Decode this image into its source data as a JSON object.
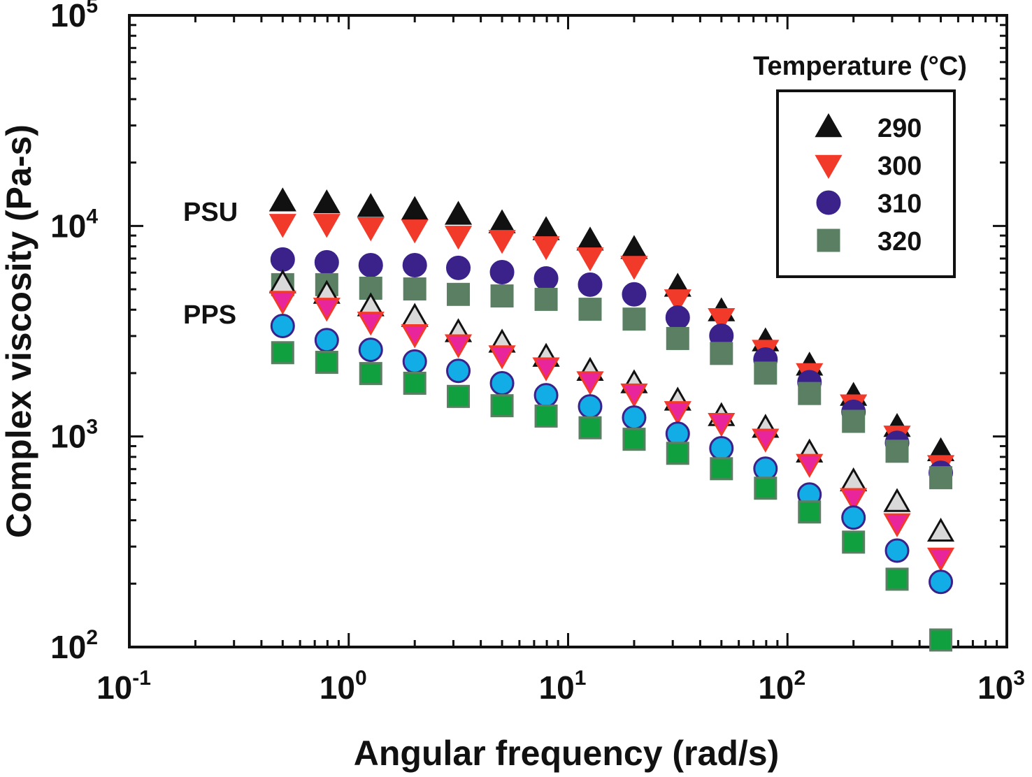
{
  "chart_data": {
    "type": "scatter",
    "xlabel": "Angular frequency (rad/s)",
    "ylabel": "Complex viscosity (Pa-s)",
    "xscale": "log",
    "yscale": "log",
    "xlim": [
      0.1,
      1000
    ],
    "ylim": [
      100,
      100000
    ],
    "x_ticks": [
      {
        "base": "10",
        "exp": "-1",
        "v": 0.1
      },
      {
        "base": "10",
        "exp": "0",
        "v": 1
      },
      {
        "base": "10",
        "exp": "1",
        "v": 10
      },
      {
        "base": "10",
        "exp": "2",
        "v": 100
      },
      {
        "base": "10",
        "exp": "3",
        "v": 1000
      }
    ],
    "y_ticks": [
      {
        "base": "10",
        "exp": "2",
        "v": 100
      },
      {
        "base": "10",
        "exp": "3",
        "v": 1000
      },
      {
        "base": "10",
        "exp": "4",
        "v": 10000
      },
      {
        "base": "10",
        "exp": "5",
        "v": 100000
      }
    ],
    "grid": false,
    "legend": {
      "title": "Temperature (°C)",
      "placement": "top-right",
      "entries": [
        "290",
        "300",
        "310",
        "320"
      ]
    },
    "annotations": [
      {
        "text": "PSU",
        "x": 0.5,
        "y": 12000
      },
      {
        "text": "PPS",
        "x": 0.5,
        "y": 4000
      }
    ],
    "x": [
      0.5,
      0.794,
      1.26,
      2,
      3.16,
      5,
      7.94,
      12.6,
      20,
      31.6,
      50,
      79.4,
      126,
      200,
      316,
      500
    ],
    "series": [
      {
        "group": "PSU",
        "temp": "290",
        "marker": "triangle-up",
        "fill": "#111111",
        "stroke": "#111111",
        "values": [
          13070,
          12800,
          12300,
          11900,
          11300,
          10300,
          9550,
          8520,
          7770,
          5140,
          3930,
          2830,
          2170,
          1560,
          1110,
          851
        ]
      },
      {
        "group": "PSU",
        "temp": "300",
        "marker": "triangle-down",
        "fill": "#f23a2a",
        "stroke": "#f23a2a",
        "values": [
          10230,
          10230,
          9850,
          9620,
          8980,
          8580,
          8010,
          7090,
          6460,
          4480,
          3650,
          2580,
          2000,
          1420,
          1010,
          731
        ]
      },
      {
        "group": "PSU",
        "temp": "310",
        "marker": "circle",
        "fill": "#3b228a",
        "stroke": "#3b228a",
        "values": [
          6930,
          6720,
          6510,
          6510,
          6320,
          6030,
          5630,
          5260,
          4730,
          3670,
          3010,
          2320,
          1810,
          1310,
          933,
          672
        ]
      },
      {
        "group": "PSU",
        "temp": "320",
        "marker": "square",
        "fill": "#5a7f62",
        "stroke": "#5a7f62",
        "values": [
          5260,
          5260,
          5060,
          5020,
          4730,
          4650,
          4480,
          4020,
          3610,
          2920,
          2480,
          2000,
          1600,
          1180,
          851,
          637
        ]
      },
      {
        "group": "PPS",
        "temp": "290",
        "marker": "triangle-up",
        "fill": "#d9d9d9",
        "stroke": "#111111",
        "values": [
          5340,
          4760,
          4150,
          3700,
          3130,
          2790,
          2390,
          2050,
          1790,
          1480,
          1250,
          1100,
          839,
          612,
          488,
          353
        ]
      },
      {
        "group": "PPS",
        "temp": "300",
        "marker": "triangle-down",
        "fill": "#e8259a",
        "stroke": "#f23a2a",
        "values": [
          4410,
          4090,
          3510,
          3060,
          2740,
          2430,
          2130,
          1830,
          1600,
          1320,
          1160,
          977,
          741,
          510,
          387,
          266
        ]
      },
      {
        "group": "PPS",
        "temp": "310",
        "marker": "circle",
        "fill": "#12ade6",
        "stroke": "#3b228a",
        "values": [
          3350,
          2870,
          2580,
          2270,
          2050,
          1790,
          1570,
          1390,
          1230,
          1030,
          879,
          703,
          530,
          412,
          287,
          204
        ]
      },
      {
        "group": "PPS",
        "temp": "320",
        "marker": "square",
        "fill": "#10a040",
        "stroke": "#5a7f62",
        "values": [
          2500,
          2250,
          1990,
          1790,
          1550,
          1400,
          1250,
          1100,
          970,
          832,
          703,
          568,
          438,
          315,
          210,
          108
        ]
      }
    ]
  }
}
